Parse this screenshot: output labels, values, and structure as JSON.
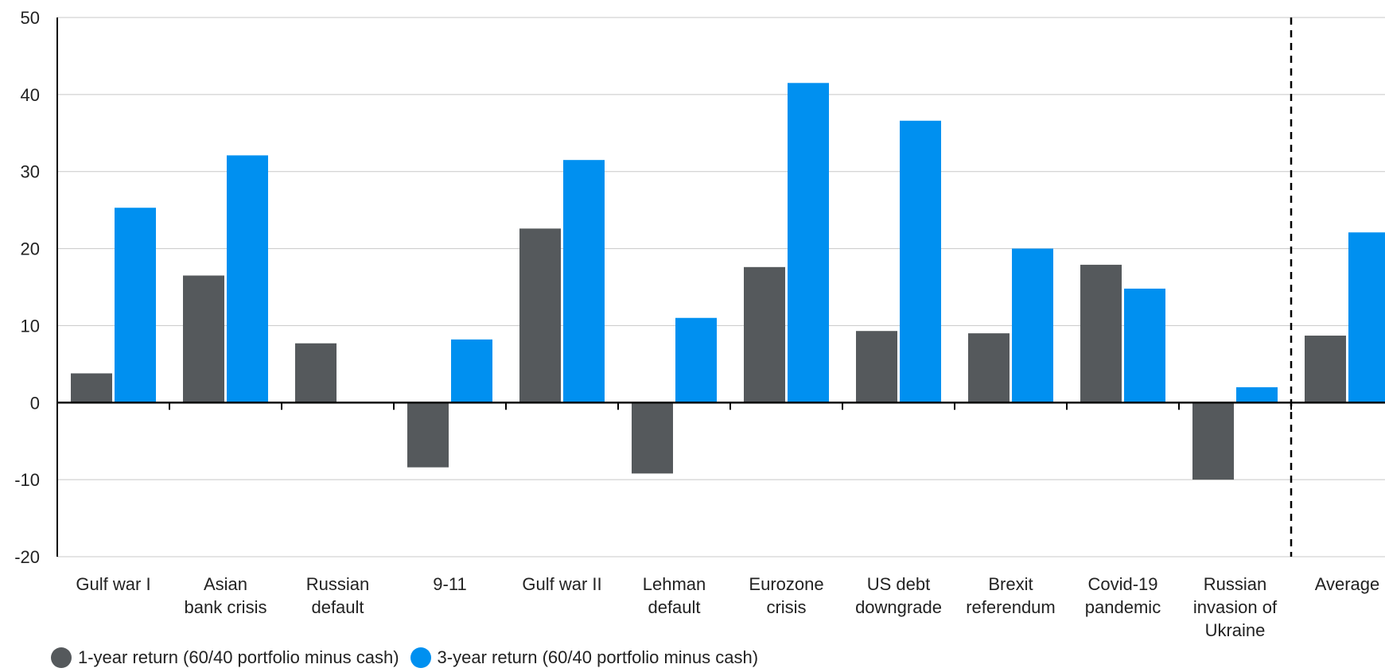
{
  "chart_data": {
    "type": "bar",
    "categories": [
      [
        "Gulf war I"
      ],
      [
        "Asian",
        "bank crisis"
      ],
      [
        "Russian",
        "default"
      ],
      [
        "9-11"
      ],
      [
        "Gulf war II"
      ],
      [
        "Lehman",
        "default"
      ],
      [
        "Eurozone",
        "crisis"
      ],
      [
        "US debt",
        "downgrade"
      ],
      [
        "Brexit",
        "referendum"
      ],
      [
        "Covid-19",
        "pandemic"
      ],
      [
        "Russian",
        "invasion of",
        "Ukraine"
      ],
      [
        "Average"
      ]
    ],
    "series": [
      {
        "name": "1-year return (60/40 portfolio minus cash)",
        "values": [
          3.8,
          16.5,
          7.7,
          -8.4,
          22.6,
          -9.2,
          17.6,
          9.3,
          9.0,
          17.9,
          -10.0,
          8.7
        ],
        "color": "#55595c"
      },
      {
        "name": "3-year return (60/40 portfolio minus cash)",
        "values": [
          25.3,
          32.1,
          0,
          8.2,
          31.5,
          11.0,
          41.5,
          36.6,
          20.0,
          14.8,
          2.0,
          22.1
        ],
        "color": "#0090f0"
      }
    ],
    "ylim": [
      -20,
      50
    ],
    "yticks": [
      "50",
      "40",
      "30",
      "20",
      "10",
      "0",
      "-10",
      "-20"
    ],
    "grid": true,
    "separator_before_category": 11
  },
  "legend": {
    "items": [
      {
        "label": "1-year return (60/40 portfolio minus cash)",
        "color": "#55595c"
      },
      {
        "label": "3-year return (60/40 portfolio minus cash)",
        "color": "#0090f0"
      }
    ]
  }
}
